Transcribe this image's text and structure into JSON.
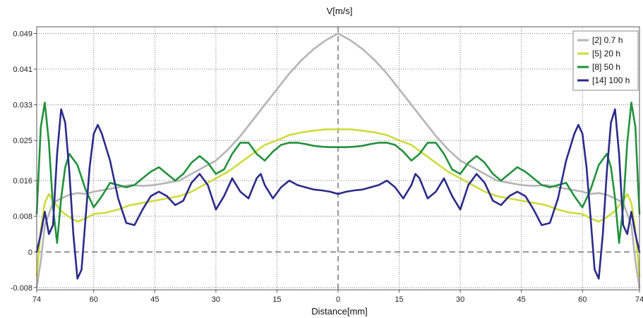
{
  "chart_data": {
    "type": "line",
    "title": "V[m/s]",
    "xlabel": "Distance[mm]",
    "ylabel": "",
    "xlim": [
      -74,
      74
    ],
    "ylim": [
      -0.0085,
      0.0505
    ],
    "x_ticks": [
      -74,
      -60,
      -45,
      -30,
      -15,
      0,
      15,
      30,
      45,
      60,
      74
    ],
    "x_tick_labels": [
      "74",
      "60",
      "45",
      "30",
      "15",
      "0",
      "15",
      "30",
      "45",
      "60",
      "74"
    ],
    "y_ticks": [
      -0.008,
      0,
      0.008,
      0.016,
      0.025,
      0.033,
      0.041,
      0.049
    ],
    "y_tick_labels": [
      "-0.008",
      "0",
      "0.008",
      "0.016",
      "0.025",
      "0.033",
      "0.041",
      "0.049"
    ],
    "grid": true,
    "legend_position": "top-right",
    "series": [
      {
        "name": "[2] 0.7 h",
        "color": "#b4b4b4",
        "x": [
          0,
          3,
          6,
          9,
          12,
          15,
          18,
          21,
          24,
          27,
          30,
          33,
          36,
          39,
          42,
          45,
          48,
          51,
          54,
          57,
          60,
          62,
          64,
          66,
          68,
          70,
          72,
          73,
          74
        ],
        "y": [
          0.049,
          0.0475,
          0.0455,
          0.043,
          0.04,
          0.0365,
          0.033,
          0.0295,
          0.026,
          0.023,
          0.0205,
          0.019,
          0.0175,
          0.016,
          0.0155,
          0.015,
          0.0148,
          0.015,
          0.0145,
          0.014,
          0.0135,
          0.013,
          0.0132,
          0.0128,
          0.012,
          0.011,
          0.006,
          -0.002,
          -0.008
        ]
      },
      {
        "name": "[5] 20 h",
        "color": "#cddc3c",
        "x": [
          0,
          3,
          6,
          9,
          12,
          15,
          18,
          21,
          24,
          27,
          30,
          33,
          36,
          39,
          42,
          45,
          48,
          51,
          54,
          57,
          60,
          62,
          64,
          66,
          68,
          70,
          71,
          72,
          73,
          74
        ],
        "y": [
          0.0275,
          0.0275,
          0.0272,
          0.0268,
          0.0262,
          0.025,
          0.024,
          0.022,
          0.02,
          0.018,
          0.0165,
          0.015,
          0.0135,
          0.0125,
          0.012,
          0.0115,
          0.011,
          0.0105,
          0.0095,
          0.0088,
          0.0085,
          0.0075,
          0.0068,
          0.0078,
          0.0092,
          0.0115,
          0.013,
          0.011,
          0.005,
          -0.0055
        ]
      },
      {
        "name": "[8] 50 h",
        "color": "#22913c",
        "x": [
          0,
          2,
          4,
          6,
          8,
          10,
          12,
          14,
          16,
          18,
          20,
          22,
          24,
          26,
          28,
          30,
          32,
          34,
          36,
          38,
          40,
          42,
          44,
          46,
          48,
          50,
          52,
          54,
          56,
          58,
          60,
          62,
          64,
          66,
          67,
          68,
          69,
          70,
          71,
          72,
          73,
          74
        ],
        "y": [
          0.0235,
          0.0235,
          0.0236,
          0.0238,
          0.0242,
          0.0245,
          0.0245,
          0.024,
          0.0225,
          0.0205,
          0.022,
          0.0245,
          0.0245,
          0.022,
          0.0185,
          0.0175,
          0.02,
          0.0215,
          0.02,
          0.0175,
          0.016,
          0.0175,
          0.019,
          0.018,
          0.0165,
          0.015,
          0.0145,
          0.015,
          0.0155,
          0.0125,
          0.01,
          0.014,
          0.0195,
          0.022,
          0.019,
          0.012,
          0.002,
          0.01,
          0.0245,
          0.0335,
          0.028,
          0.0085
        ]
      },
      {
        "name": "[14] 100 h",
        "color": "#2b2b8a",
        "x": [
          0,
          2,
          4,
          6,
          8,
          10,
          12,
          14,
          16,
          18,
          19,
          20,
          22,
          24,
          26,
          28,
          30,
          32,
          34,
          36,
          38,
          40,
          42,
          44,
          46,
          48,
          50,
          52,
          54,
          56,
          58,
          59,
          60,
          61,
          62,
          63,
          64,
          65,
          66,
          67,
          68,
          69,
          70,
          71,
          72,
          73,
          74
        ],
        "y": [
          0.013,
          0.0135,
          0.0138,
          0.014,
          0.0145,
          0.015,
          0.016,
          0.0145,
          0.012,
          0.015,
          0.0175,
          0.0165,
          0.012,
          0.0135,
          0.0165,
          0.0125,
          0.0095,
          0.015,
          0.0175,
          0.0155,
          0.0115,
          0.0105,
          0.0125,
          0.0135,
          0.0125,
          0.0095,
          0.006,
          0.0065,
          0.012,
          0.0205,
          0.0265,
          0.0285,
          0.0265,
          0.019,
          0.0075,
          -0.004,
          -0.006,
          0.004,
          0.018,
          0.029,
          0.032,
          0.022,
          0.006,
          0.004,
          0.009,
          0.004,
          0.0
        ]
      }
    ]
  }
}
